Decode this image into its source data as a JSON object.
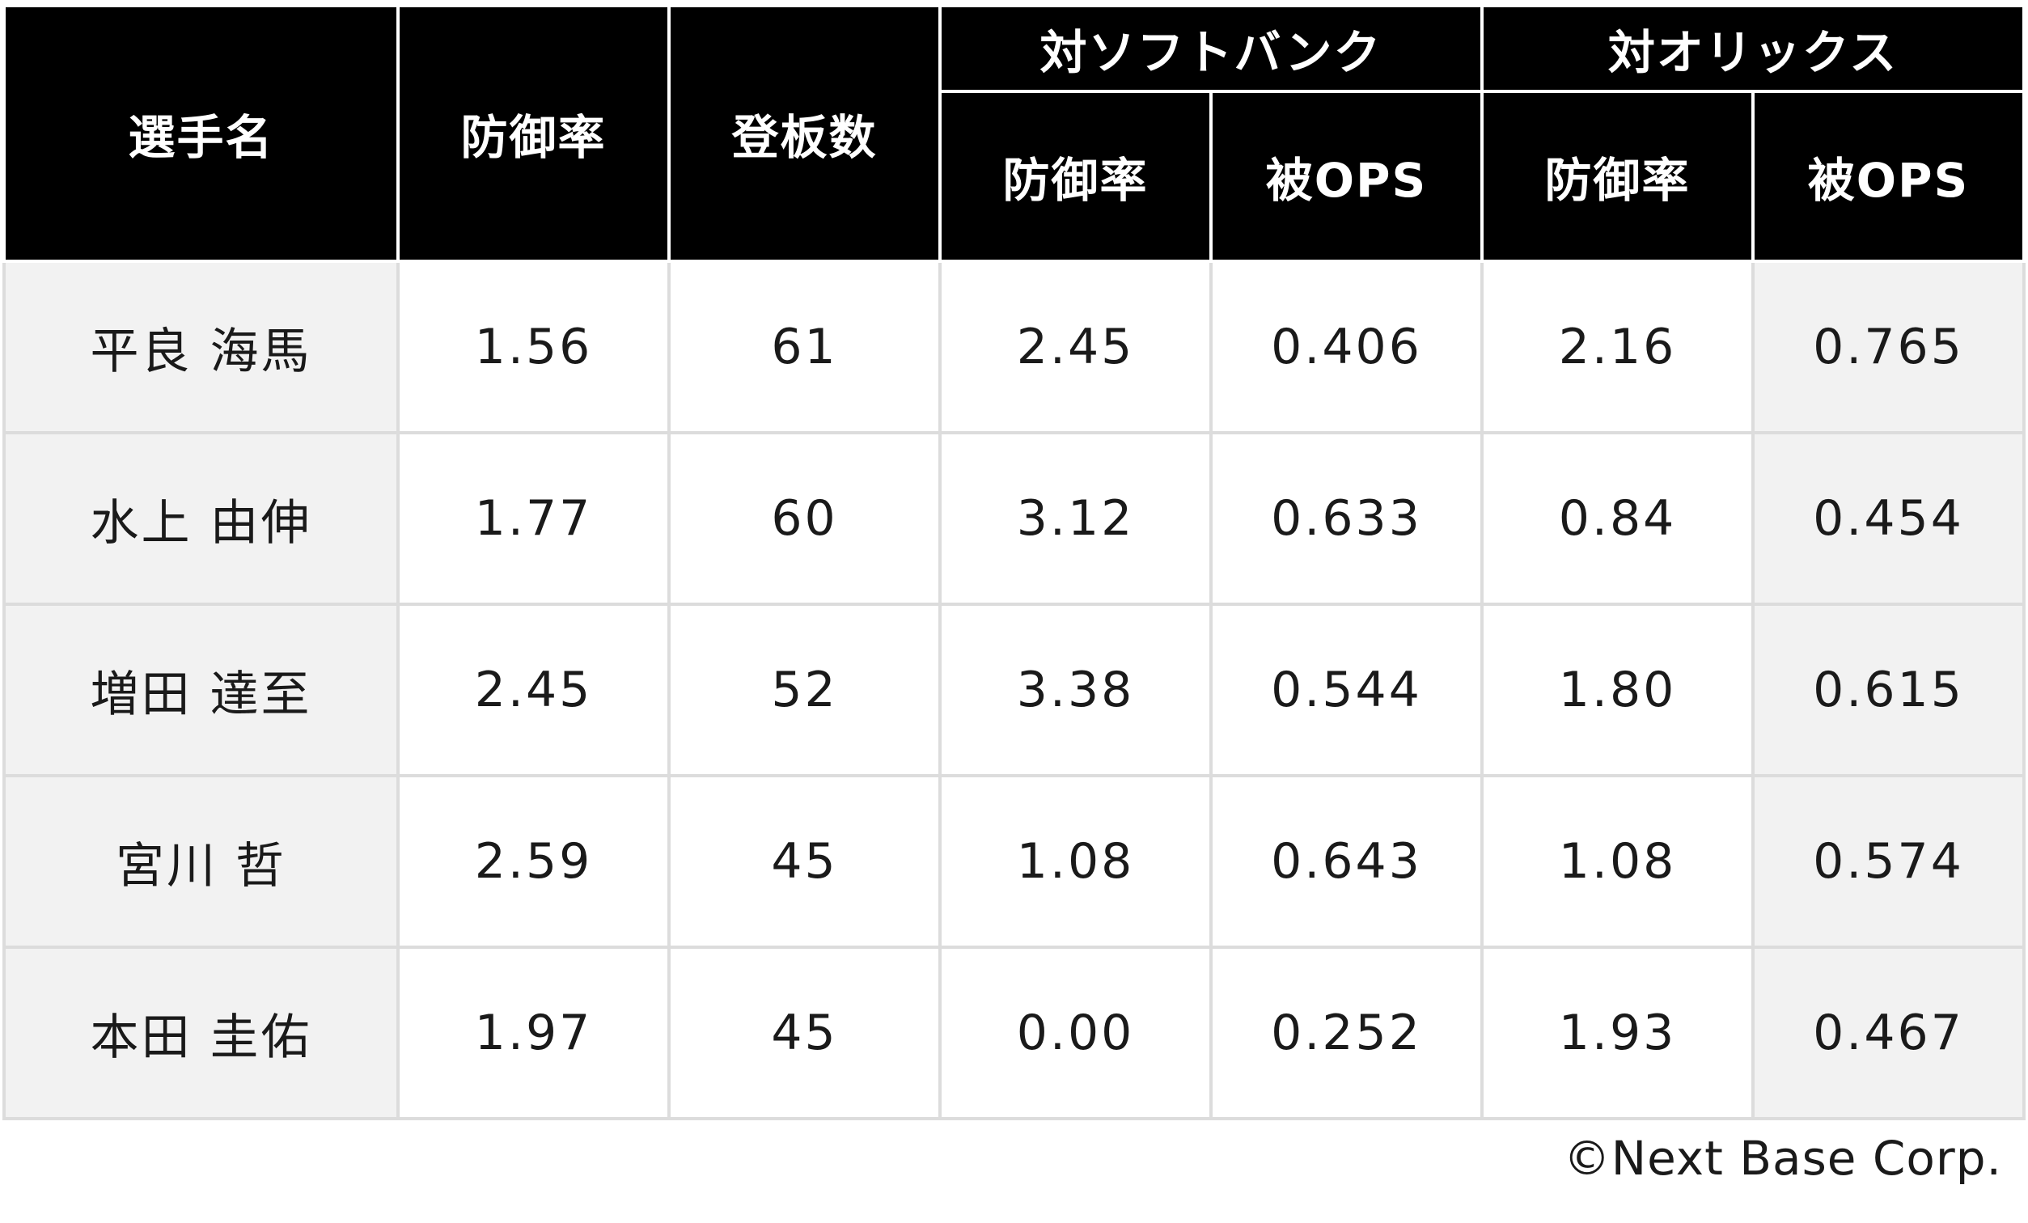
{
  "chart_data": {
    "type": "table",
    "headers": {
      "name": "選手名",
      "era": "防御率",
      "games": "登板数",
      "group_softbank": "対ソフトバンク",
      "group_orix": "対オリックス",
      "sub_era": "防御率",
      "sub_ops": "被OPS"
    },
    "rows": [
      {
        "name": "平良 海馬",
        "era": "1.56",
        "games": "61",
        "sb_era": "2.45",
        "sb_ops": "0.406",
        "orix_era": "2.16",
        "orix_ops": "0.765"
      },
      {
        "name": "水上 由伸",
        "era": "1.77",
        "games": "60",
        "sb_era": "3.12",
        "sb_ops": "0.633",
        "orix_era": "0.84",
        "orix_ops": "0.454"
      },
      {
        "name": "増田 達至",
        "era": "2.45",
        "games": "52",
        "sb_era": "3.38",
        "sb_ops": "0.544",
        "orix_era": "1.80",
        "orix_ops": "0.615"
      },
      {
        "name": "宮川 哲",
        "era": "2.59",
        "games": "45",
        "sb_era": "1.08",
        "sb_ops": "0.643",
        "orix_era": "1.08",
        "orix_ops": "0.574"
      },
      {
        "name": "本田 圭佑",
        "era": "1.97",
        "games": "45",
        "sb_era": "0.00",
        "sb_ops": "0.252",
        "orix_era": "1.93",
        "orix_ops": "0.467"
      }
    ]
  },
  "copyright": "©Next Base Corp.",
  "colors": {
    "header_bg": "#000000",
    "header_text": "#ffffff",
    "row_shade": "#f2f2f2",
    "row_white": "#ffffff",
    "grid": "#dcdcdc"
  }
}
